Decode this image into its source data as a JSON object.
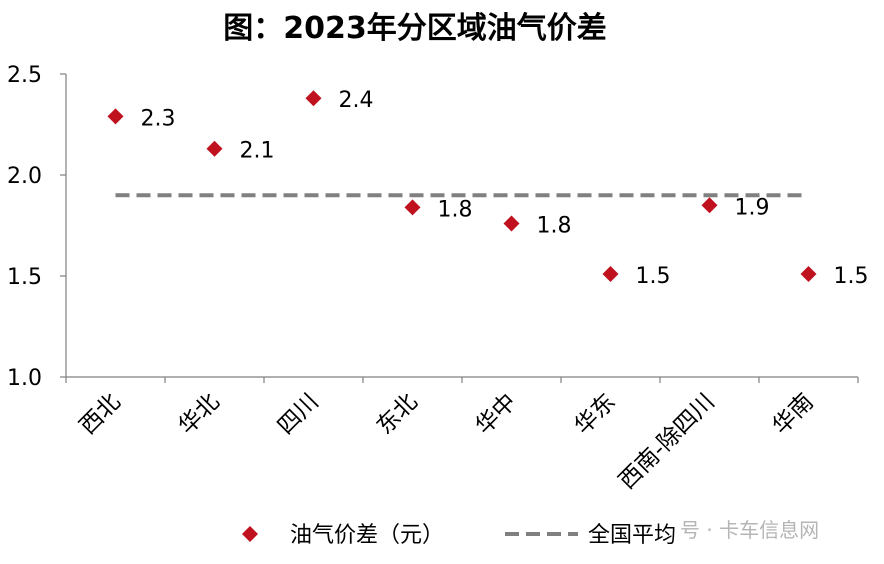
{
  "chart_data": {
    "type": "scatter",
    "title": "图：2023年分区域油气价差",
    "categories": [
      "西北",
      "华北",
      "四川",
      "东北",
      "华中",
      "华东",
      "西南-除四川",
      "华南"
    ],
    "series": [
      {
        "name": "油气价差（元）",
        "values": [
          2.29,
          2.13,
          2.38,
          1.84,
          1.76,
          1.51,
          1.85,
          1.51
        ],
        "labels": [
          "2.3",
          "2.1",
          "2.4",
          "1.8",
          "1.8",
          "1.5",
          "1.9",
          "1.5"
        ],
        "marker": "diamond",
        "color": "#c0111f"
      },
      {
        "name": "全国平均",
        "value": 1.9,
        "style": "dashed-line",
        "color": "#808080"
      }
    ],
    "ylim": [
      1.0,
      2.5
    ],
    "yticks": [
      "1.0",
      "1.5",
      "2.0",
      "2.5"
    ],
    "ytick_values": [
      1.0,
      1.5,
      2.0,
      2.5
    ],
    "legend_position": "bottom",
    "grid": false
  },
  "watermark": "号 · 卡车信息网"
}
